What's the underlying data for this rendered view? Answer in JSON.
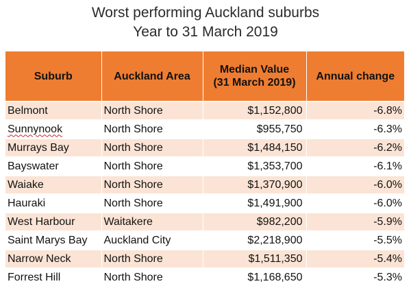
{
  "title": {
    "line1": "Worst performing Auckland suburbs",
    "line2": "Year to 31 March 2019"
  },
  "colors": {
    "header_bg": "#ee7d31",
    "row_stripe": "#fbe4d5",
    "row_plain": "#ffffff"
  },
  "table": {
    "headers": [
      {
        "line1": "Suburb",
        "line2": ""
      },
      {
        "line1": "Auckland Area",
        "line2": ""
      },
      {
        "line1": "Median Value",
        "line2": "(31 March 2019)"
      },
      {
        "line1": "Annual change",
        "line2": ""
      }
    ],
    "rows": [
      [
        "Belmont",
        "North Shore",
        "$1,152,800",
        "-6.8%"
      ],
      [
        "Sunnynook",
        "North Shore",
        "$955,750",
        "-6.3%"
      ],
      [
        "Murrays Bay",
        "North Shore",
        "$1,484,150",
        "-6.2%"
      ],
      [
        "Bayswater",
        "North Shore",
        "$1,353,700",
        "-6.1%"
      ],
      [
        "Waiake",
        "North Shore",
        "$1,370,900",
        "-6.0%"
      ],
      [
        "Hauraki",
        "North Shore",
        "$1,491,900",
        "-6.0%"
      ],
      [
        "West Harbour",
        "Waitakere",
        "$982,200",
        "-5.9%"
      ],
      [
        "Saint Marys Bay",
        "Auckland City",
        "$2,218,900",
        "-5.5%"
      ],
      [
        "Narrow Neck",
        "North Shore",
        "$1,511,350",
        "-5.4%"
      ],
      [
        "Forrest Hill",
        "North Shore",
        "$1,168,650",
        "-5.3%"
      ]
    ]
  }
}
